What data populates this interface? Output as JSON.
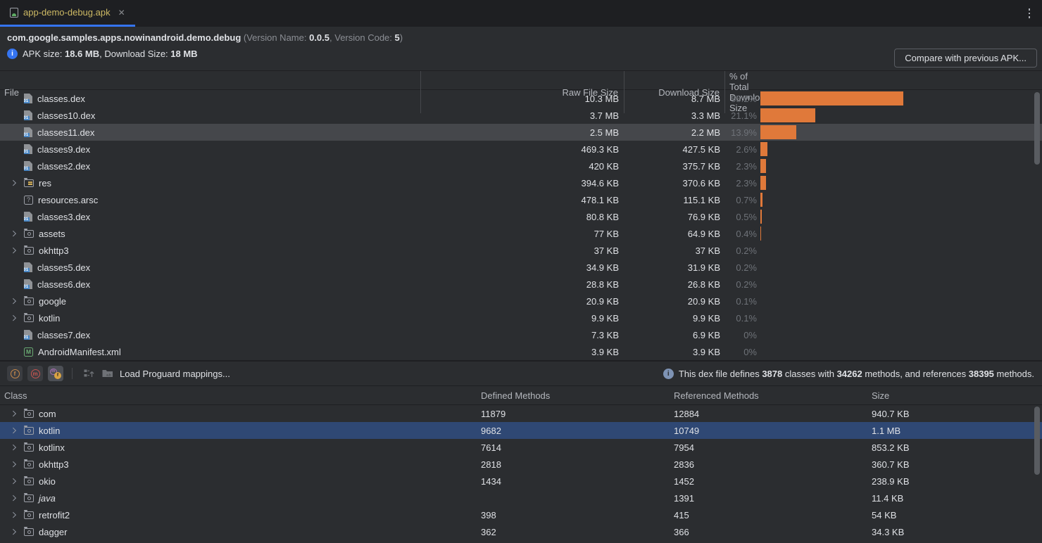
{
  "tab": {
    "title": "app-demo-debug.apk",
    "close": "✕"
  },
  "header": {
    "package": "com.google.samples.apps.nowinandroid.demo.debug",
    "version_prefix": " (Version Name: ",
    "version_name": "0.0.5",
    "version_mid": ", Version Code: ",
    "version_code": "5",
    "version_suffix": ")",
    "apk_size_label": "APK size: ",
    "apk_size": "18.6 MB",
    "download_label": ", Download Size: ",
    "download_size": "18 MB",
    "compare_button": "Compare with previous APK..."
  },
  "colors": {
    "accent_blue": "#3574f0",
    "bar_orange": "#e0793a",
    "selection_gray": "#45474b",
    "selection_blue": "#2f4874",
    "background": "#2b2d30",
    "tabstrip": "#1e1f22"
  },
  "files_table": {
    "columns": [
      "File",
      "Raw File Size",
      "Download Size",
      "% of Total Download Size"
    ],
    "rows": [
      {
        "name": "classes.dex",
        "icon": "dex",
        "expandable": false,
        "raw": "10.3 MB",
        "download": "8.7 MB",
        "pct": 55.2,
        "pct_label": "55.2%",
        "selected": false
      },
      {
        "name": "classes10.dex",
        "icon": "dex",
        "expandable": false,
        "raw": "3.7 MB",
        "download": "3.3 MB",
        "pct": 21.1,
        "pct_label": "21.1%",
        "selected": false
      },
      {
        "name": "classes11.dex",
        "icon": "dex",
        "expandable": false,
        "raw": "2.5 MB",
        "download": "2.2 MB",
        "pct": 13.9,
        "pct_label": "13.9%",
        "selected": true
      },
      {
        "name": "classes9.dex",
        "icon": "dex",
        "expandable": false,
        "raw": "469.3 KB",
        "download": "427.5 KB",
        "pct": 2.6,
        "pct_label": "2.6%",
        "selected": false
      },
      {
        "name": "classes2.dex",
        "icon": "dex",
        "expandable": false,
        "raw": "420 KB",
        "download": "375.7 KB",
        "pct": 2.3,
        "pct_label": "2.3%",
        "selected": false
      },
      {
        "name": "res",
        "icon": "folder-res",
        "expandable": true,
        "raw": "394.6 KB",
        "download": "370.6 KB",
        "pct": 2.3,
        "pct_label": "2.3%",
        "selected": false
      },
      {
        "name": "resources.arsc",
        "icon": "arsc",
        "expandable": false,
        "raw": "478.1 KB",
        "download": "115.1 KB",
        "pct": 0.7,
        "pct_label": "0.7%",
        "selected": false
      },
      {
        "name": "classes3.dex",
        "icon": "dex",
        "expandable": false,
        "raw": "80.8 KB",
        "download": "76.9 KB",
        "pct": 0.5,
        "pct_label": "0.5%",
        "selected": false
      },
      {
        "name": "assets",
        "icon": "package",
        "expandable": true,
        "raw": "77 KB",
        "download": "64.9 KB",
        "pct": 0.4,
        "pct_label": "0.4%",
        "selected": false
      },
      {
        "name": "okhttp3",
        "icon": "package",
        "expandable": true,
        "raw": "37 KB",
        "download": "37 KB",
        "pct": 0.2,
        "pct_label": "0.2%",
        "selected": false
      },
      {
        "name": "classes5.dex",
        "icon": "dex",
        "expandable": false,
        "raw": "34.9 KB",
        "download": "31.9 KB",
        "pct": 0.2,
        "pct_label": "0.2%",
        "selected": false
      },
      {
        "name": "classes6.dex",
        "icon": "dex",
        "expandable": false,
        "raw": "28.8 KB",
        "download": "26.8 KB",
        "pct": 0.2,
        "pct_label": "0.2%",
        "selected": false
      },
      {
        "name": "google",
        "icon": "package",
        "expandable": true,
        "raw": "20.9 KB",
        "download": "20.9 KB",
        "pct": 0.1,
        "pct_label": "0.1%",
        "selected": false
      },
      {
        "name": "kotlin",
        "icon": "package",
        "expandable": true,
        "raw": "9.9 KB",
        "download": "9.9 KB",
        "pct": 0.1,
        "pct_label": "0.1%",
        "selected": false
      },
      {
        "name": "classes7.dex",
        "icon": "dex",
        "expandable": false,
        "raw": "7.3 KB",
        "download": "6.9 KB",
        "pct": 0,
        "pct_label": "0%",
        "selected": false
      },
      {
        "name": "AndroidManifest.xml",
        "icon": "manifest",
        "expandable": false,
        "raw": "3.9 KB",
        "download": "3.9 KB",
        "pct": 0,
        "pct_label": "0%",
        "selected": false
      }
    ]
  },
  "toolbar": {
    "load_mappings": "Load Proguard mappings...",
    "dex_info": {
      "t1": "This dex file defines ",
      "classes": "3878",
      "t2": " classes with ",
      "methods": "34262",
      "t3": " methods, and references ",
      "refs": "38395",
      "t4": " methods."
    }
  },
  "classes_table": {
    "columns": [
      "Class",
      "Defined Methods",
      "Referenced Methods",
      "Size"
    ],
    "rows": [
      {
        "name": "com",
        "defined": "11879",
        "referenced": "12884",
        "size": "940.7 KB",
        "selected": false,
        "italic": false
      },
      {
        "name": "kotlin",
        "defined": "9682",
        "referenced": "10749",
        "size": "1.1 MB",
        "selected": true,
        "italic": false
      },
      {
        "name": "kotlinx",
        "defined": "7614",
        "referenced": "7954",
        "size": "853.2 KB",
        "selected": false,
        "italic": false
      },
      {
        "name": "okhttp3",
        "defined": "2818",
        "referenced": "2836",
        "size": "360.7 KB",
        "selected": false,
        "italic": false
      },
      {
        "name": "okio",
        "defined": "1434",
        "referenced": "1452",
        "size": "238.9 KB",
        "selected": false,
        "italic": false
      },
      {
        "name": "java",
        "defined": "",
        "referenced": "1391",
        "size": "11.4 KB",
        "selected": false,
        "italic": true
      },
      {
        "name": "retrofit2",
        "defined": "398",
        "referenced": "415",
        "size": "54 KB",
        "selected": false,
        "italic": false
      },
      {
        "name": "dagger",
        "defined": "362",
        "referenced": "366",
        "size": "34.3 KB",
        "selected": false,
        "italic": false
      }
    ]
  }
}
